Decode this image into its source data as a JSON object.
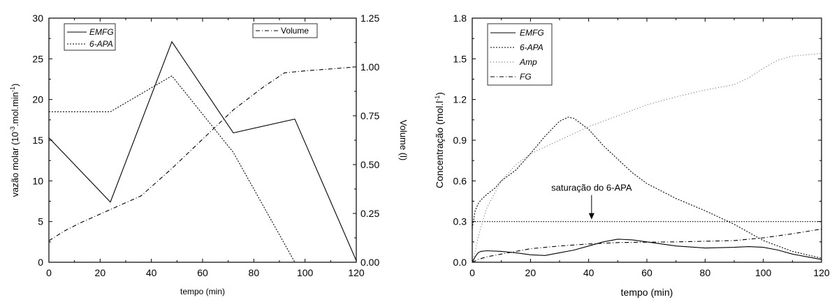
{
  "chart_data": [
    {
      "type": "line",
      "xlabel": "tempo (min)",
      "ylabel_main": "vazão molar (10",
      "ylabel_sup": "-3",
      "ylabel_rest": ".mol.min",
      "ylabel_sup2": "-1",
      "ylabel_end": ")",
      "y2label": "Volume (l)",
      "xlim": [
        0,
        120
      ],
      "ylim": [
        0,
        30
      ],
      "y2lim": [
        0,
        1.25
      ],
      "xticks": [
        "0",
        "20",
        "40",
        "60",
        "80",
        "100",
        "120"
      ],
      "yticks": [
        "0",
        "5",
        "10",
        "15",
        "20",
        "25",
        "30"
      ],
      "y2ticks": [
        "0.00",
        "0.25",
        "0.50",
        "0.75",
        "1.00",
        "1.25"
      ],
      "legend_left": [
        "EMFG",
        "6-APA"
      ],
      "legend_right": [
        "Volume"
      ],
      "series": [
        {
          "name": "EMFG",
          "axis": "left",
          "style": "solid",
          "x": [
            0,
            24,
            48,
            72,
            96,
            120
          ],
          "y": [
            15.3,
            7.4,
            27.1,
            15.9,
            17.6,
            0.2
          ]
        },
        {
          "name": "6-APA",
          "axis": "left",
          "style": "dotted",
          "x": [
            0,
            24,
            48,
            72,
            96
          ],
          "y": [
            18.5,
            18.5,
            22.9,
            13.5,
            0
          ]
        },
        {
          "name": "Volume",
          "axis": "right",
          "style": "dashdot",
          "x": [
            0,
            6,
            12,
            24,
            36,
            48,
            60,
            72,
            84,
            92,
            100,
            110,
            120
          ],
          "y": [
            0.11,
            0.16,
            0.2,
            0.27,
            0.34,
            0.48,
            0.63,
            0.78,
            0.9,
            0.97,
            0.98,
            0.99,
            1.0
          ]
        }
      ]
    },
    {
      "type": "line",
      "xlabel": "tempo (min)",
      "ylabel_main": "Concentração (mol.l",
      "ylabel_sup": "-1",
      "ylabel_end": ")",
      "xlim": [
        0,
        120
      ],
      "ylim": [
        0,
        1.8
      ],
      "xticks": [
        "0",
        "20",
        "40",
        "60",
        "80",
        "100",
        "120"
      ],
      "yticks": [
        "0.0",
        "0.3",
        "0.6",
        "0.9",
        "1.2",
        "1.5",
        "1.8"
      ],
      "legend": [
        "EMFG",
        "6-APA",
        "Amp",
        "FG"
      ],
      "annotation": {
        "text": "saturação do 6-APA",
        "x": 41,
        "y": 0.3
      },
      "saturation": 0.3,
      "series": [
        {
          "name": "EMFG",
          "style": "solid",
          "x": [
            0,
            1,
            2,
            3,
            5,
            10,
            15,
            20,
            25,
            30,
            35,
            40,
            45,
            50,
            55,
            60,
            70,
            80,
            90,
            95,
            100,
            105,
            110,
            115,
            120
          ],
          "y": [
            0,
            0.04,
            0.07,
            0.08,
            0.085,
            0.08,
            0.07,
            0.055,
            0.05,
            0.07,
            0.09,
            0.12,
            0.15,
            0.17,
            0.165,
            0.15,
            0.12,
            0.105,
            0.11,
            0.115,
            0.11,
            0.09,
            0.06,
            0.04,
            0.02
          ]
        },
        {
          "name": "6-APA",
          "style": "dotted",
          "x": [
            0,
            1,
            2,
            3,
            5,
            8,
            10,
            15,
            20,
            25,
            30,
            33,
            35,
            40,
            45,
            50,
            55,
            60,
            70,
            80,
            90,
            100,
            110,
            120
          ],
          "y": [
            0.25,
            0.38,
            0.43,
            0.46,
            0.5,
            0.55,
            0.6,
            0.68,
            0.8,
            0.93,
            1.04,
            1.07,
            1.06,
            0.98,
            0.86,
            0.76,
            0.66,
            0.58,
            0.47,
            0.38,
            0.28,
            0.16,
            0.08,
            0.03
          ]
        },
        {
          "name": "Amp",
          "style": "dotted-light",
          "x": [
            0,
            1,
            2,
            3,
            5,
            8,
            10,
            15,
            20,
            25,
            30,
            40,
            50,
            60,
            70,
            80,
            90,
            95,
            100,
            105,
            110,
            115,
            120
          ],
          "y": [
            0,
            0.08,
            0.18,
            0.26,
            0.4,
            0.52,
            0.6,
            0.72,
            0.8,
            0.85,
            0.9,
            1.0,
            1.08,
            1.16,
            1.22,
            1.27,
            1.31,
            1.36,
            1.43,
            1.49,
            1.52,
            1.53,
            1.54
          ]
        },
        {
          "name": "FG",
          "style": "dashdot",
          "x": [
            0,
            2,
            5,
            10,
            20,
            30,
            40,
            50,
            60,
            70,
            80,
            90,
            100,
            110,
            120
          ],
          "y": [
            0,
            0.02,
            0.04,
            0.06,
            0.1,
            0.12,
            0.135,
            0.145,
            0.148,
            0.15,
            0.155,
            0.16,
            0.18,
            0.21,
            0.245
          ]
        }
      ]
    }
  ]
}
